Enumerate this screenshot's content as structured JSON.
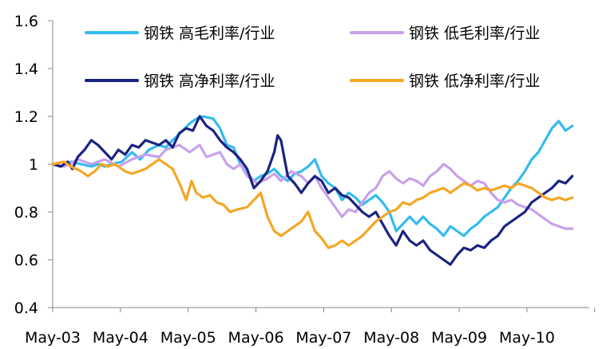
{
  "chart_data": {
    "type": "line",
    "title": "",
    "xlabel": "",
    "ylabel": "",
    "ylim": [
      0.4,
      1.6
    ],
    "yticks": [
      "0.4",
      "0.6",
      "0.8",
      "1",
      "1.2",
      "1.4",
      "1.6"
    ],
    "xlim": [
      2003.33,
      2011.25
    ],
    "xticks": [
      "May-03",
      "May-04",
      "May-05",
      "May-06",
      "May-07",
      "May-08",
      "May-09",
      "May-10"
    ],
    "grid": false,
    "legend_position": "top",
    "series": [
      {
        "name": "钢铁 高毛利率/行业",
        "color": "#33bbee",
        "points": [
          [
            2003.33,
            1.0
          ],
          [
            2003.45,
            0.99
          ],
          [
            2003.6,
            1.01
          ],
          [
            2003.75,
            1.0
          ],
          [
            2003.9,
            0.99
          ],
          [
            2004.0,
            1.0
          ],
          [
            2004.1,
            0.99
          ],
          [
            2004.2,
            1.0
          ],
          [
            2004.35,
            1.01
          ],
          [
            2004.5,
            1.05
          ],
          [
            2004.62,
            1.02
          ],
          [
            2004.75,
            1.06
          ],
          [
            2004.9,
            1.08
          ],
          [
            2005.0,
            1.07
          ],
          [
            2005.1,
            1.1
          ],
          [
            2005.25,
            1.14
          ],
          [
            2005.35,
            1.17
          ],
          [
            2005.45,
            1.19
          ],
          [
            2005.55,
            1.2
          ],
          [
            2005.7,
            1.19
          ],
          [
            2005.8,
            1.15
          ],
          [
            2005.9,
            1.08
          ],
          [
            2006.0,
            1.07
          ],
          [
            2006.1,
            1.0
          ],
          [
            2006.2,
            0.96
          ],
          [
            2006.3,
            0.93
          ],
          [
            2006.4,
            0.95
          ],
          [
            2006.5,
            0.96
          ],
          [
            2006.6,
            0.98
          ],
          [
            2006.7,
            0.95
          ],
          [
            2006.8,
            0.93
          ],
          [
            2006.9,
            0.96
          ],
          [
            2007.0,
            0.97
          ],
          [
            2007.1,
            0.99
          ],
          [
            2007.2,
            1.02
          ],
          [
            2007.3,
            0.95
          ],
          [
            2007.4,
            0.92
          ],
          [
            2007.5,
            0.9
          ],
          [
            2007.6,
            0.85
          ],
          [
            2007.7,
            0.88
          ],
          [
            2007.8,
            0.86
          ],
          [
            2007.9,
            0.83
          ],
          [
            2008.0,
            0.85
          ],
          [
            2008.1,
            0.87
          ],
          [
            2008.2,
            0.84
          ],
          [
            2008.3,
            0.8
          ],
          [
            2008.4,
            0.72
          ],
          [
            2008.5,
            0.75
          ],
          [
            2008.6,
            0.78
          ],
          [
            2008.7,
            0.75
          ],
          [
            2008.8,
            0.78
          ],
          [
            2008.9,
            0.75
          ],
          [
            2009.0,
            0.73
          ],
          [
            2009.1,
            0.7
          ],
          [
            2009.2,
            0.74
          ],
          [
            2009.3,
            0.72
          ],
          [
            2009.4,
            0.7
          ],
          [
            2009.5,
            0.73
          ],
          [
            2009.6,
            0.75
          ],
          [
            2009.7,
            0.78
          ],
          [
            2009.8,
            0.8
          ],
          [
            2009.9,
            0.82
          ],
          [
            2010.0,
            0.86
          ],
          [
            2010.1,
            0.9
          ],
          [
            2010.2,
            0.93
          ],
          [
            2010.3,
            0.97
          ],
          [
            2010.4,
            1.02
          ],
          [
            2010.5,
            1.05
          ],
          [
            2010.6,
            1.1
          ],
          [
            2010.7,
            1.15
          ],
          [
            2010.8,
            1.18
          ],
          [
            2010.9,
            1.14
          ],
          [
            2011.0,
            1.16
          ]
        ]
      },
      {
        "name": "钢铁 低毛利率/行业",
        "color": "#c8a0ec",
        "points": [
          [
            2003.33,
            1.0
          ],
          [
            2003.5,
            0.99
          ],
          [
            2003.7,
            1.02
          ],
          [
            2003.9,
            1.0
          ],
          [
            2004.1,
            1.02
          ],
          [
            2004.3,
            0.99
          ],
          [
            2004.5,
            1.02
          ],
          [
            2004.7,
            1.04
          ],
          [
            2004.9,
            1.03
          ],
          [
            2005.0,
            1.06
          ],
          [
            2005.2,
            1.08
          ],
          [
            2005.35,
            1.05
          ],
          [
            2005.5,
            1.08
          ],
          [
            2005.6,
            1.03
          ],
          [
            2005.8,
            1.05
          ],
          [
            2005.9,
            1.0
          ],
          [
            2006.0,
            0.98
          ],
          [
            2006.1,
            1.0
          ],
          [
            2006.2,
            0.95
          ],
          [
            2006.35,
            0.92
          ],
          [
            2006.5,
            0.94
          ],
          [
            2006.6,
            0.96
          ],
          [
            2006.7,
            0.93
          ],
          [
            2006.85,
            0.97
          ],
          [
            2007.0,
            0.95
          ],
          [
            2007.1,
            0.92
          ],
          [
            2007.2,
            0.95
          ],
          [
            2007.3,
            0.9
          ],
          [
            2007.4,
            0.86
          ],
          [
            2007.5,
            0.82
          ],
          [
            2007.6,
            0.78
          ],
          [
            2007.7,
            0.81
          ],
          [
            2007.8,
            0.8
          ],
          [
            2007.9,
            0.84
          ],
          [
            2008.0,
            0.88
          ],
          [
            2008.1,
            0.9
          ],
          [
            2008.2,
            0.95
          ],
          [
            2008.3,
            0.97
          ],
          [
            2008.4,
            0.94
          ],
          [
            2008.5,
            0.92
          ],
          [
            2008.6,
            0.94
          ],
          [
            2008.7,
            0.93
          ],
          [
            2008.8,
            0.91
          ],
          [
            2008.9,
            0.95
          ],
          [
            2009.0,
            0.97
          ],
          [
            2009.1,
            1.0
          ],
          [
            2009.2,
            0.98
          ],
          [
            2009.3,
            0.95
          ],
          [
            2009.4,
            0.93
          ],
          [
            2009.5,
            0.91
          ],
          [
            2009.6,
            0.93
          ],
          [
            2009.7,
            0.92
          ],
          [
            2009.8,
            0.88
          ],
          [
            2009.9,
            0.85
          ],
          [
            2010.0,
            0.84
          ],
          [
            2010.1,
            0.85
          ],
          [
            2010.2,
            0.83
          ],
          [
            2010.3,
            0.82
          ],
          [
            2010.4,
            0.81
          ],
          [
            2010.5,
            0.79
          ],
          [
            2010.6,
            0.77
          ],
          [
            2010.7,
            0.75
          ],
          [
            2010.8,
            0.74
          ],
          [
            2010.9,
            0.73
          ],
          [
            2011.0,
            0.73
          ]
        ]
      },
      {
        "name": "钢铁 高净利率/行业",
        "color": "#1a237e",
        "points": [
          [
            2003.33,
            1.0
          ],
          [
            2003.45,
            0.99
          ],
          [
            2003.55,
            1.01
          ],
          [
            2003.62,
            0.98
          ],
          [
            2003.7,
            1.03
          ],
          [
            2003.8,
            1.06
          ],
          [
            2003.9,
            1.1
          ],
          [
            2004.0,
            1.08
          ],
          [
            2004.1,
            1.05
          ],
          [
            2004.2,
            1.02
          ],
          [
            2004.3,
            1.06
          ],
          [
            2004.4,
            1.04
          ],
          [
            2004.5,
            1.08
          ],
          [
            2004.6,
            1.07
          ],
          [
            2004.7,
            1.1
          ],
          [
            2004.8,
            1.09
          ],
          [
            2004.9,
            1.08
          ],
          [
            2005.0,
            1.1
          ],
          [
            2005.1,
            1.07
          ],
          [
            2005.2,
            1.13
          ],
          [
            2005.3,
            1.15
          ],
          [
            2005.4,
            1.14
          ],
          [
            2005.5,
            1.2
          ],
          [
            2005.6,
            1.16
          ],
          [
            2005.7,
            1.14
          ],
          [
            2005.8,
            1.1
          ],
          [
            2005.9,
            1.07
          ],
          [
            2006.0,
            1.05
          ],
          [
            2006.1,
            1.02
          ],
          [
            2006.2,
            0.98
          ],
          [
            2006.3,
            0.9
          ],
          [
            2006.4,
            0.93
          ],
          [
            2006.5,
            0.97
          ],
          [
            2006.6,
            1.05
          ],
          [
            2006.65,
            1.12
          ],
          [
            2006.7,
            1.1
          ],
          [
            2006.8,
            0.95
          ],
          [
            2006.9,
            0.92
          ],
          [
            2007.0,
            0.88
          ],
          [
            2007.1,
            0.92
          ],
          [
            2007.2,
            0.95
          ],
          [
            2007.3,
            0.93
          ],
          [
            2007.4,
            0.88
          ],
          [
            2007.5,
            0.9
          ],
          [
            2007.6,
            0.87
          ],
          [
            2007.7,
            0.86
          ],
          [
            2007.8,
            0.83
          ],
          [
            2007.9,
            0.8
          ],
          [
            2008.0,
            0.78
          ],
          [
            2008.1,
            0.8
          ],
          [
            2008.2,
            0.75
          ],
          [
            2008.3,
            0.7
          ],
          [
            2008.4,
            0.66
          ],
          [
            2008.5,
            0.72
          ],
          [
            2008.6,
            0.68
          ],
          [
            2008.7,
            0.66
          ],
          [
            2008.8,
            0.68
          ],
          [
            2008.9,
            0.64
          ],
          [
            2009.0,
            0.62
          ],
          [
            2009.1,
            0.6
          ],
          [
            2009.2,
            0.58
          ],
          [
            2009.3,
            0.62
          ],
          [
            2009.4,
            0.65
          ],
          [
            2009.5,
            0.64
          ],
          [
            2009.6,
            0.66
          ],
          [
            2009.7,
            0.65
          ],
          [
            2009.8,
            0.68
          ],
          [
            2009.9,
            0.7
          ],
          [
            2010.0,
            0.74
          ],
          [
            2010.1,
            0.76
          ],
          [
            2010.2,
            0.78
          ],
          [
            2010.3,
            0.8
          ],
          [
            2010.4,
            0.84
          ],
          [
            2010.5,
            0.86
          ],
          [
            2010.6,
            0.88
          ],
          [
            2010.7,
            0.9
          ],
          [
            2010.8,
            0.93
          ],
          [
            2010.9,
            0.92
          ],
          [
            2011.0,
            0.95
          ]
        ]
      },
      {
        "name": "钢铁 低净利率/行业",
        "color": "#f5a623",
        "points": [
          [
            2003.33,
            1.0
          ],
          [
            2003.5,
            1.01
          ],
          [
            2003.6,
            0.99
          ],
          [
            2003.75,
            0.97
          ],
          [
            2003.85,
            0.95
          ],
          [
            2003.95,
            0.97
          ],
          [
            2004.05,
            1.0
          ],
          [
            2004.15,
            0.99
          ],
          [
            2004.25,
            1.0
          ],
          [
            2004.4,
            0.97
          ],
          [
            2004.5,
            0.96
          ],
          [
            2004.6,
            0.97
          ],
          [
            2004.7,
            0.98
          ],
          [
            2004.8,
            1.0
          ],
          [
            2004.9,
            1.02
          ],
          [
            2005.0,
            1.0
          ],
          [
            2005.1,
            0.98
          ],
          [
            2005.2,
            0.92
          ],
          [
            2005.3,
            0.85
          ],
          [
            2005.38,
            0.93
          ],
          [
            2005.45,
            0.88
          ],
          [
            2005.55,
            0.86
          ],
          [
            2005.65,
            0.87
          ],
          [
            2005.75,
            0.84
          ],
          [
            2005.85,
            0.83
          ],
          [
            2005.95,
            0.8
          ],
          [
            2006.05,
            0.81
          ],
          [
            2006.2,
            0.82
          ],
          [
            2006.3,
            0.85
          ],
          [
            2006.4,
            0.88
          ],
          [
            2006.5,
            0.78
          ],
          [
            2006.6,
            0.72
          ],
          [
            2006.7,
            0.7
          ],
          [
            2006.8,
            0.72
          ],
          [
            2006.9,
            0.74
          ],
          [
            2007.0,
            0.76
          ],
          [
            2007.1,
            0.8
          ],
          [
            2007.2,
            0.72
          ],
          [
            2007.3,
            0.69
          ],
          [
            2007.4,
            0.65
          ],
          [
            2007.5,
            0.66
          ],
          [
            2007.6,
            0.68
          ],
          [
            2007.7,
            0.66
          ],
          [
            2007.8,
            0.68
          ],
          [
            2007.9,
            0.7
          ],
          [
            2008.0,
            0.73
          ],
          [
            2008.1,
            0.76
          ],
          [
            2008.2,
            0.78
          ],
          [
            2008.3,
            0.8
          ],
          [
            2008.4,
            0.81
          ],
          [
            2008.5,
            0.84
          ],
          [
            2008.6,
            0.83
          ],
          [
            2008.7,
            0.85
          ],
          [
            2008.8,
            0.86
          ],
          [
            2008.9,
            0.88
          ],
          [
            2009.0,
            0.89
          ],
          [
            2009.1,
            0.9
          ],
          [
            2009.2,
            0.88
          ],
          [
            2009.3,
            0.9
          ],
          [
            2009.4,
            0.92
          ],
          [
            2009.5,
            0.91
          ],
          [
            2009.6,
            0.89
          ],
          [
            2009.7,
            0.9
          ],
          [
            2009.8,
            0.89
          ],
          [
            2009.9,
            0.9
          ],
          [
            2010.0,
            0.91
          ],
          [
            2010.1,
            0.9
          ],
          [
            2010.2,
            0.92
          ],
          [
            2010.3,
            0.91
          ],
          [
            2010.4,
            0.9
          ],
          [
            2010.5,
            0.88
          ],
          [
            2010.6,
            0.86
          ],
          [
            2010.7,
            0.85
          ],
          [
            2010.8,
            0.86
          ],
          [
            2010.9,
            0.85
          ],
          [
            2011.0,
            0.86
          ]
        ]
      }
    ]
  }
}
